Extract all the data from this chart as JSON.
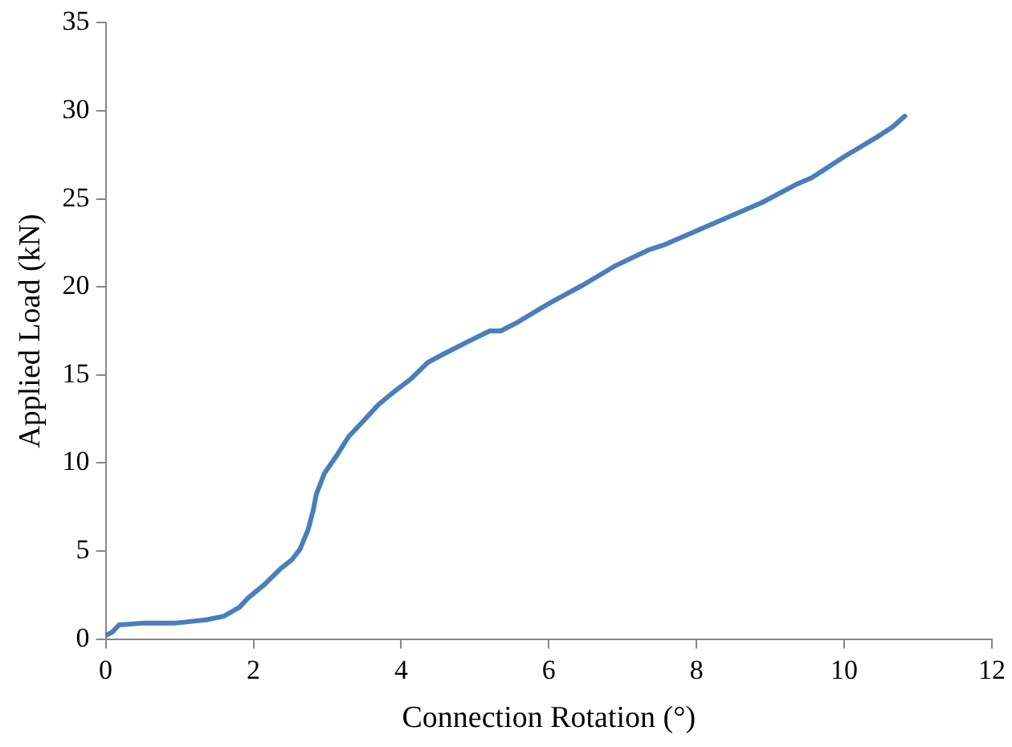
{
  "chart_data": {
    "type": "line",
    "xlabel": "Connection Rotation (°)",
    "ylabel": "Applied Load (kN)",
    "xlim": [
      0,
      12
    ],
    "xticks": [
      0,
      2,
      4,
      6,
      8,
      10,
      12
    ],
    "ylim": [
      0,
      35
    ],
    "yticks": [
      0,
      5,
      10,
      15,
      20,
      25,
      30,
      35
    ],
    "grid": false,
    "legend": false,
    "marker": "none",
    "line_style": "solid",
    "series": [
      {
        "color": "#4a7ebb",
        "x": [
          0,
          0.09,
          0.18,
          0.49,
          0.93,
          1.37,
          1.6,
          1.81,
          1.92,
          2.15,
          2.37,
          2.52,
          2.63,
          2.74,
          2.81,
          2.85,
          2.96,
          3.14,
          3.29,
          3.47,
          3.69,
          3.92,
          4.14,
          4.36,
          4.58,
          4.91,
          5.2,
          5.35,
          5.58,
          6.02,
          6.46,
          6.9,
          7.35,
          7.57,
          8.01,
          8.45,
          8.89,
          9.34,
          9.56,
          10.0,
          10.44,
          10.66,
          10.82
        ],
        "values": [
          0.2,
          0.4,
          0.8,
          0.9,
          0.9,
          1.1,
          1.3,
          1.8,
          2.3,
          3.1,
          4.0,
          4.5,
          5.1,
          6.2,
          7.3,
          8.2,
          9.4,
          10.5,
          11.5,
          12.3,
          13.3,
          14.1,
          14.8,
          15.7,
          16.2,
          16.9,
          17.5,
          17.5,
          18.0,
          19.1,
          20.1,
          21.2,
          22.1,
          22.4,
          23.2,
          24.0,
          24.8,
          25.8,
          26.2,
          27.4,
          28.5,
          29.1,
          29.7
        ]
      }
    ]
  }
}
